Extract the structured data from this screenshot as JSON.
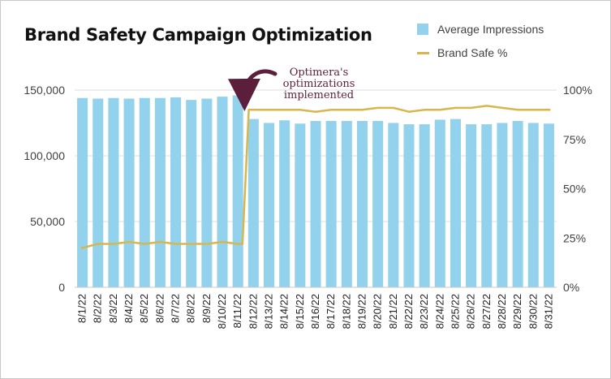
{
  "chart_data": {
    "type": "bar+line",
    "title": "Brand Safety Campaign Optimization",
    "categories": [
      "8/1/22",
      "8/2/22",
      "8/3/22",
      "8/4/22",
      "8/5/22",
      "8/6/22",
      "8/7/22",
      "8/8/22",
      "8/9/22",
      "8/10/22",
      "8/11/22",
      "8/12/22",
      "8/13/22",
      "8/14/22",
      "8/15/22",
      "8/16/22",
      "8/17/22",
      "8/18/22",
      "8/19/22",
      "8/20/22",
      "8/21/22",
      "8/22/22",
      "8/23/22",
      "8/24/22",
      "8/25/22",
      "8/26/22",
      "8/27/22",
      "8/28/22",
      "8/29/22",
      "8/30/22",
      "8/31/22"
    ],
    "series": [
      {
        "name": "Average Impressions",
        "type": "bar",
        "axis": "left",
        "color": "#93d2ec",
        "values": [
          144000,
          143500,
          144000,
          143500,
          144000,
          144000,
          144500,
          142500,
          143500,
          145000,
          146000,
          128000,
          125000,
          127000,
          124500,
          126500,
          126500,
          126500,
          126500,
          126500,
          125000,
          124000,
          124000,
          127500,
          128000,
          124000,
          124000,
          125000,
          126500,
          125000,
          124500
        ]
      },
      {
        "name": "Brand Safe %",
        "type": "line",
        "axis": "right",
        "color": "#d6b74e",
        "values": [
          20,
          22,
          22,
          23,
          22,
          23,
          22,
          22,
          22,
          23,
          22,
          90,
          90,
          90,
          90,
          89,
          90,
          90,
          90,
          91,
          91,
          89,
          90,
          90,
          91,
          91,
          92,
          91,
          90,
          90,
          90
        ]
      }
    ],
    "y_left": {
      "min": 0,
      "max": 150000,
      "ticks": [
        "0",
        "50,000",
        "100,000",
        "150,000"
      ]
    },
    "y_right": {
      "min": 0,
      "max": 100,
      "ticks": [
        "0%",
        "25%",
        "50%",
        "75%",
        "100%"
      ]
    },
    "grid": true,
    "legend": "top-right",
    "annotation": {
      "lines": [
        "Optimera's",
        "optimizations",
        "implemented"
      ],
      "target_category": "8/11/22",
      "color": "#5b1f3c"
    }
  }
}
